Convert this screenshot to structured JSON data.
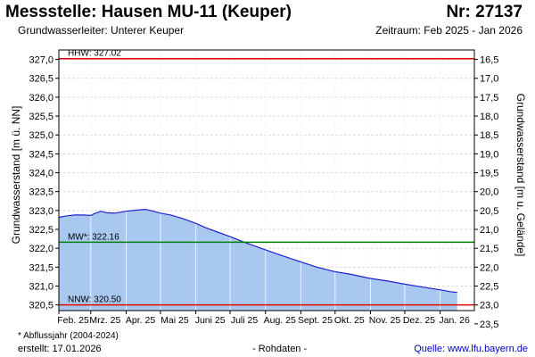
{
  "header": {
    "title": "Messstelle: Hausen MU-11 (Keuper)",
    "nr": "Nr: 27137",
    "aquifer": "Grundwasserleiter:   Unterer Keuper",
    "period": "Zeitraum: Feb 2025 - Jan 2026"
  },
  "footer": {
    "footnote": "* Abflussjahr (2004-2024)",
    "created": "erstellt:  17.01.2026",
    "data_type": "- Rohdaten -",
    "source": "Quelle:  www.lfu.bayern.de"
  },
  "colors": {
    "hhw": "#e00000",
    "mw": "#008000",
    "nnw": "#e00000",
    "area_fill": "#a8c8f0",
    "line": "#2020d0"
  },
  "chart_data": {
    "type": "area",
    "ylabel": "Grundwasserstand [m ü. NN]",
    "y2label": "Grundwasserstand [m u. Gelände]",
    "ylim": [
      320.35,
      327.25
    ],
    "yticks": [
      320.5,
      321.0,
      321.5,
      322.0,
      322.5,
      323.0,
      323.5,
      324.0,
      324.5,
      325.0,
      325.5,
      326.0,
      326.5,
      327.0
    ],
    "ytick_labels": [
      "320,5",
      "321,0",
      "321,5",
      "322,0",
      "322,5",
      "323,0",
      "323,5",
      "324,0",
      "324,5",
      "325,0",
      "325,5",
      "326,0",
      "326,5",
      "327,0"
    ],
    "y2ticks": [
      16.5,
      17.0,
      17.5,
      18.0,
      18.5,
      19.0,
      19.5,
      20.0,
      20.5,
      21.0,
      21.5,
      22.0,
      22.5,
      23.0,
      23.5
    ],
    "y2tick_labels": [
      "16,5",
      "17,0",
      "17,5",
      "18,0",
      "18,5",
      "19,0",
      "19,5",
      "20,0",
      "20,5",
      "21,0",
      "21,5",
      "22,0",
      "22,5",
      "23,0",
      "23,5"
    ],
    "y2_offset": 343.5,
    "x_start": "2025-02-01",
    "x_end": "2026-01-31",
    "xticks": [
      "2025-02-01",
      "2025-03-01",
      "2025-04-01",
      "2025-05-01",
      "2025-06-01",
      "2025-07-01",
      "2025-08-01",
      "2025-09-01",
      "2025-10-01",
      "2025-11-01",
      "2025-12-01",
      "2026-01-01"
    ],
    "xtick_labels": [
      "Feb. 25",
      "Mrz. 25",
      "Apr. 25",
      "Mai 25",
      "Juni 25",
      "Juli 25",
      "Aug. 25",
      "Sept. 25",
      "Okt. 25",
      "Nov. 25",
      "Dez. 25",
      "Jan. 26"
    ],
    "grid": true,
    "reference_lines": [
      {
        "label": "HHW: 327.02",
        "value": 327.02,
        "color": "#e00000"
      },
      {
        "label": "MW*: 322.16",
        "value": 322.16,
        "color": "#008000"
      },
      {
        "label": "NNW: 320.50",
        "value": 320.5,
        "color": "#e00000"
      }
    ],
    "series": [
      {
        "x": [
          "2025-02-01",
          "2025-02-08",
          "2025-02-15",
          "2025-02-22",
          "2025-03-01",
          "2025-03-05",
          "2025-03-10",
          "2025-03-15",
          "2025-03-22",
          "2025-04-01",
          "2025-04-10",
          "2025-04-18",
          "2025-04-25",
          "2025-05-01",
          "2025-05-10",
          "2025-05-20",
          "2025-06-01",
          "2025-06-10",
          "2025-06-20",
          "2025-07-01",
          "2025-07-15",
          "2025-08-01",
          "2025-08-15",
          "2025-09-01",
          "2025-09-15",
          "2025-10-01",
          "2025-10-15",
          "2025-11-01",
          "2025-11-15",
          "2025-12-01",
          "2025-12-15",
          "2026-01-01",
          "2026-01-10",
          "2026-01-16"
        ],
        "y": [
          322.82,
          322.86,
          322.88,
          322.88,
          322.87,
          322.93,
          322.98,
          322.94,
          322.93,
          322.98,
          323.01,
          323.03,
          322.98,
          322.93,
          322.88,
          322.79,
          322.66,
          322.54,
          322.43,
          322.31,
          322.14,
          321.96,
          321.81,
          321.64,
          321.5,
          321.38,
          321.31,
          321.2,
          321.14,
          321.05,
          320.98,
          320.9,
          320.85,
          320.83
        ]
      }
    ]
  }
}
